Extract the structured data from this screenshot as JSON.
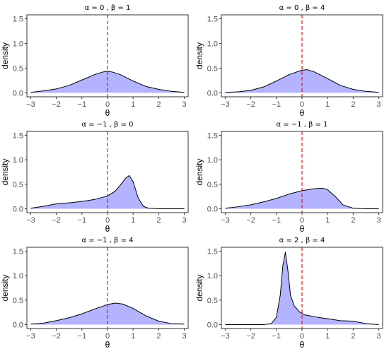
{
  "colors": {
    "fill": "#b3b3ff",
    "stroke": "#000000",
    "vline": "#e41a1c",
    "frame": "#333333",
    "tick_text": "#4d4d4d"
  },
  "chart_data": [
    {
      "type": "area",
      "title": "α = 0 ,  β = 1",
      "xlabel": "θ",
      "ylabel": "density",
      "xlim": [
        -3.15,
        3.15
      ],
      "ylim": [
        -0.08,
        1.58
      ],
      "xticks": [
        -3,
        -2,
        -1,
        0,
        1,
        2,
        3
      ],
      "yticks": [
        0.0,
        0.5,
        1.0,
        1.5
      ],
      "vline": 0,
      "grid": false,
      "x": [
        -3,
        -2.5,
        -2,
        -1.5,
        -1,
        -0.5,
        -0.2,
        0,
        0.2,
        0.5,
        1,
        1.5,
        2,
        2.5,
        3
      ],
      "y": [
        0.01,
        0.04,
        0.08,
        0.15,
        0.26,
        0.37,
        0.42,
        0.44,
        0.42,
        0.37,
        0.24,
        0.13,
        0.07,
        0.03,
        0.01
      ]
    },
    {
      "type": "area",
      "title": "α = 0 ,  β = 4",
      "xlabel": "θ",
      "ylabel": "density",
      "xlim": [
        -3.15,
        3.15
      ],
      "ylim": [
        -0.08,
        1.58
      ],
      "xticks": [
        -3,
        -2,
        -1,
        0,
        1,
        2,
        3
      ],
      "yticks": [
        0.0,
        0.5,
        1.0,
        1.5
      ],
      "vline": 0,
      "grid": false,
      "x": [
        -3,
        -2.5,
        -2,
        -1.5,
        -1,
        -0.5,
        0,
        0.2,
        0.5,
        1,
        1.5,
        2,
        2.5,
        3
      ],
      "y": [
        0.01,
        0.02,
        0.05,
        0.12,
        0.24,
        0.37,
        0.46,
        0.47,
        0.42,
        0.29,
        0.15,
        0.07,
        0.03,
        0.01
      ]
    },
    {
      "type": "area",
      "title": "α = −1 ,  β = 0",
      "xlabel": "θ",
      "ylabel": "density",
      "xlim": [
        -3.15,
        3.15
      ],
      "ylim": [
        -0.08,
        1.58
      ],
      "xticks": [
        -3,
        -2,
        -1,
        0,
        1,
        2,
        3
      ],
      "yticks": [
        0.0,
        0.5,
        1.0,
        1.5
      ],
      "vline": 0,
      "grid": false,
      "x": [
        -3,
        -2.5,
        -2,
        -1.5,
        -1,
        -0.5,
        0,
        0.3,
        0.5,
        0.7,
        0.85,
        1,
        1.2,
        1.4,
        1.6,
        2,
        2.5,
        3
      ],
      "y": [
        0.01,
        0.05,
        0.1,
        0.12,
        0.15,
        0.19,
        0.26,
        0.36,
        0.48,
        0.62,
        0.68,
        0.55,
        0.22,
        0.05,
        0.01,
        0.0,
        0.0,
        0.0
      ]
    },
    {
      "type": "area",
      "title": "α = −1 ,  β = 1",
      "xlabel": "θ",
      "ylabel": "density",
      "xlim": [
        -3.15,
        3.15
      ],
      "ylim": [
        -0.08,
        1.58
      ],
      "xticks": [
        -3,
        -2,
        -1,
        0,
        1,
        2,
        3
      ],
      "yticks": [
        0.0,
        0.5,
        1.0,
        1.5
      ],
      "vline": 0,
      "grid": false,
      "x": [
        -3,
        -2.5,
        -2,
        -1.5,
        -1,
        -0.5,
        0,
        0.5,
        0.8,
        1,
        1.3,
        1.6,
        2,
        2.5,
        3
      ],
      "y": [
        0.01,
        0.04,
        0.08,
        0.14,
        0.21,
        0.3,
        0.37,
        0.41,
        0.42,
        0.39,
        0.25,
        0.08,
        0.01,
        0.0,
        0.0
      ]
    },
    {
      "type": "area",
      "title": "α = −1 ,  β = 4",
      "xlabel": "θ",
      "ylabel": "density",
      "xlim": [
        -3.15,
        3.15
      ],
      "ylim": [
        -0.08,
        1.58
      ],
      "xticks": [
        -3,
        -2,
        -1,
        0,
        1,
        2,
        3
      ],
      "yticks": [
        0.0,
        0.5,
        1.0,
        1.5
      ],
      "vline": 0,
      "grid": false,
      "x": [
        -3,
        -2.5,
        -2,
        -1.5,
        -1,
        -0.5,
        0,
        0.3,
        0.6,
        1,
        1.5,
        2,
        2.5,
        3
      ],
      "y": [
        0.01,
        0.03,
        0.08,
        0.14,
        0.22,
        0.32,
        0.41,
        0.44,
        0.42,
        0.33,
        0.18,
        0.07,
        0.02,
        0.01
      ]
    },
    {
      "type": "area",
      "title": "α = 2 ,  β = 4",
      "xlabel": "θ",
      "ylabel": "density",
      "xlim": [
        -3.15,
        3.15
      ],
      "ylim": [
        -0.08,
        1.58
      ],
      "xticks": [
        -3,
        -2,
        -1,
        0,
        1,
        2,
        3
      ],
      "yticks": [
        0.0,
        0.5,
        1.0,
        1.5
      ],
      "vline": 0,
      "grid": false,
      "x": [
        -3,
        -1.5,
        -1.2,
        -1.0,
        -0.85,
        -0.75,
        -0.65,
        -0.55,
        -0.45,
        -0.3,
        -0.1,
        0.1,
        0.3,
        0.6,
        1.0,
        1.5,
        2.0,
        2.5,
        3
      ],
      "y": [
        0.0,
        0.0,
        0.02,
        0.15,
        0.6,
        1.2,
        1.48,
        1.1,
        0.6,
        0.38,
        0.26,
        0.2,
        0.18,
        0.15,
        0.12,
        0.08,
        0.07,
        0.02,
        0.0
      ]
    }
  ]
}
